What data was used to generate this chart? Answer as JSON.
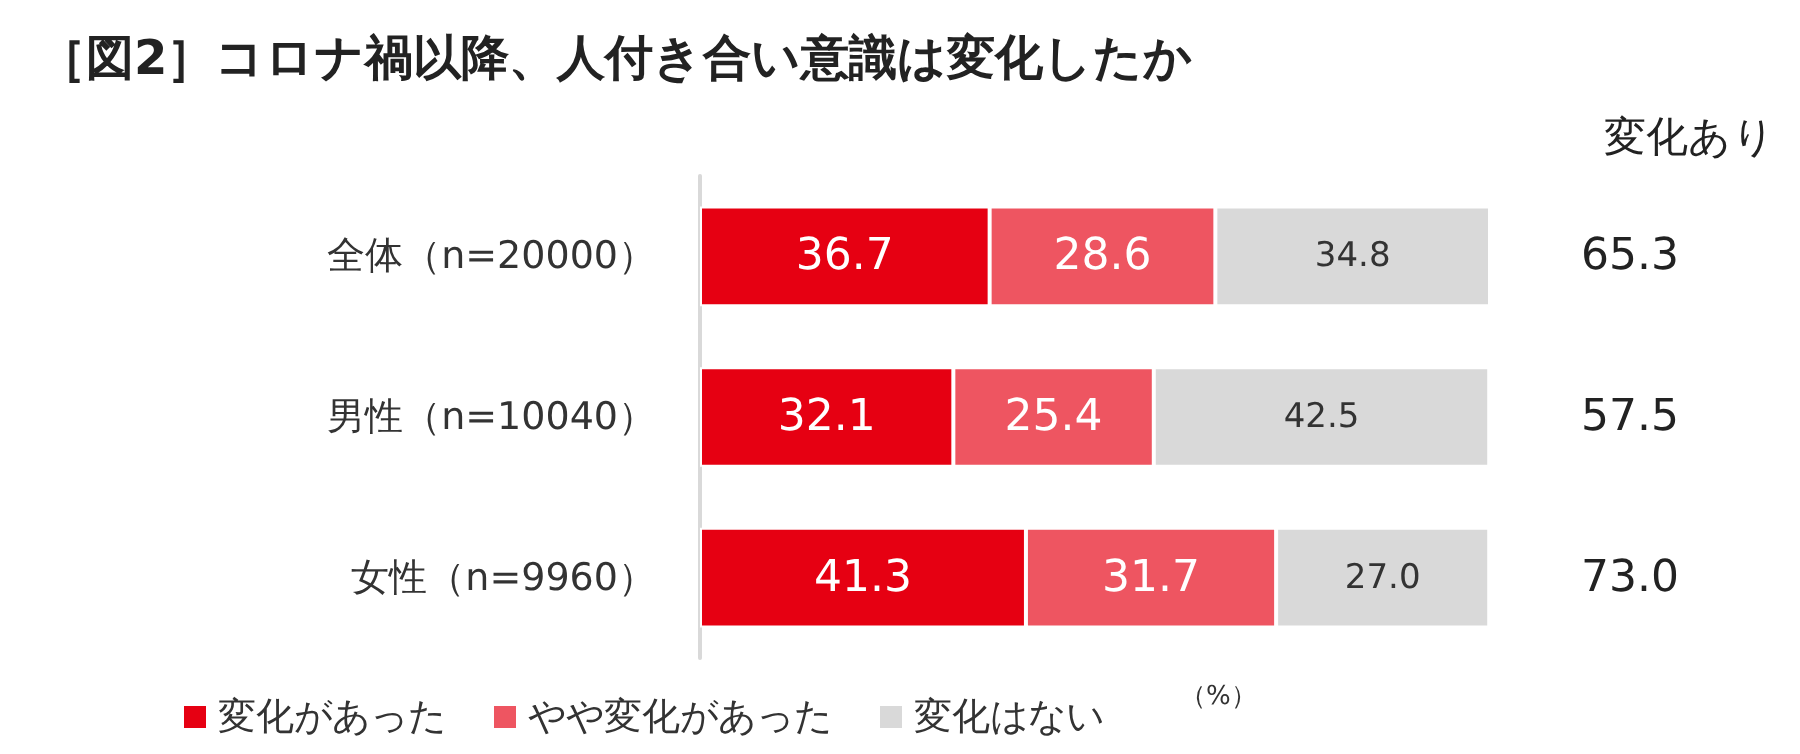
{
  "chart_data": {
    "type": "bar",
    "title": "［図2］コロナ禍以降、人付き合い意識は変化したか",
    "orientation": "horizontal",
    "stacked": true,
    "legend": "bottom",
    "grid": false,
    "tick_labels": "y",
    "categories": [
      "全体（n=20000）",
      "男性（n=10040）",
      "女性（n=9960）"
    ],
    "xlim": [
      0,
      100.1
    ],
    "series": [
      {
        "name": "変化があった",
        "color": "#e60012",
        "values": [
          36.7,
          32.1,
          41.3
        ],
        "value_labels": [
          "36.7",
          "32.1",
          "41.3"
        ]
      },
      {
        "name": "やや変化があった",
        "color": "#ee5561",
        "values": [
          28.6,
          25.4,
          31.7
        ],
        "value_labels": [
          "28.6",
          "25.4",
          "31.7"
        ]
      },
      {
        "name": "変化はない",
        "color": "#d9d9d9",
        "values": [
          34.8,
          42.5,
          27.0
        ],
        "value_labels": [
          "34.8",
          "42.5",
          "27.0"
        ]
      }
    ],
    "annotations": [
      "変化あり",
      "（%）",
      "65.3",
      "57.5",
      "73.0"
    ]
  }
}
